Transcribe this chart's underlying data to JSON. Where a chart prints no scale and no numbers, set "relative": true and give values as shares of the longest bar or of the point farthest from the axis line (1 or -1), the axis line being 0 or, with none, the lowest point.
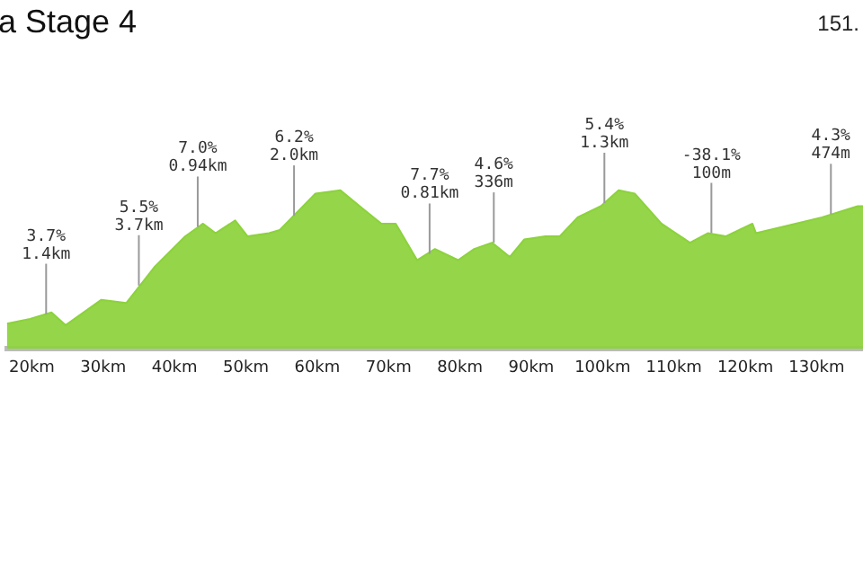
{
  "chart_data": {
    "type": "area",
    "title": "a Stage 4",
    "relative": true,
    "x": [
      16.5,
      19.75,
      22.75,
      24.75,
      29.75,
      33.25,
      37.25,
      41.5,
      44,
      45.75,
      48.5,
      50.25,
      53.25,
      54.75,
      59.75,
      63.25,
      66.5,
      69,
      71,
      74,
      76.5,
      79.75,
      82,
      84.5,
      87,
      89,
      92,
      94,
      96.5,
      99.75,
      102.25,
      104.5,
      108.25,
      112.25,
      114.75,
      117.25,
      121,
      121.5,
      130.75,
      135.75,
      136.5
    ],
    "series": [
      {
        "color": "#8cd23c",
        "values": [
          0.16,
          0.19,
          0.23,
          0.15,
          0.31,
          0.29,
          0.52,
          0.71,
          0.79,
          0.73,
          0.81,
          0.71,
          0.73,
          0.75,
          0.98,
          1,
          0.88,
          0.79,
          0.79,
          0.56,
          0.63,
          0.56,
          0.63,
          0.67,
          0.58,
          0.69,
          0.71,
          0.71,
          0.83,
          0.9,
          1,
          0.98,
          0.79,
          0.67,
          0.73,
          0.71,
          0.79,
          0.73,
          0.83,
          0.9,
          0.9
        ]
      }
    ],
    "xlim": [
      16.5,
      136.5
    ],
    "xticks": [
      {
        "value": 20,
        "label": "20km"
      },
      {
        "value": 30,
        "label": "30km"
      },
      {
        "value": 40,
        "label": "40km"
      },
      {
        "value": 50,
        "label": "50km"
      },
      {
        "value": 60,
        "label": "60km"
      },
      {
        "value": 70,
        "label": "70km"
      },
      {
        "value": 80,
        "label": "80km"
      },
      {
        "value": 90,
        "label": "90km"
      },
      {
        "value": 100,
        "label": "100km"
      },
      {
        "value": 110,
        "label": "110km"
      },
      {
        "value": 120,
        "label": "120km"
      },
      {
        "value": 130,
        "label": "130km"
      }
    ],
    "grid": false,
    "legend": false,
    "annotations": [
      "151.",
      {
        "text": "3.7%\n1.4km",
        "x": 22,
        "y": 0.22
      },
      {
        "text": "5.5%\n3.7km",
        "x": 35,
        "y": 0.4
      },
      {
        "text": "7.0%\n0.94km",
        "x": 43.25,
        "y": 0.77
      },
      {
        "text": "6.2%\n2.0km",
        "x": 56.75,
        "y": 0.84
      },
      {
        "text": "7.7%\n0.81km",
        "x": 75.75,
        "y": 0.6
      },
      {
        "text": "4.6%\n336m",
        "x": 84.75,
        "y": 0.67
      },
      {
        "text": "5.4%\n1.3km",
        "x": 100.25,
        "y": 0.92
      },
      {
        "text": "-38.1%\n100m",
        "x": 115.25,
        "y": 0.73
      },
      {
        "text": "4.3%\n474m",
        "x": 132,
        "y": 0.85
      }
    ]
  }
}
